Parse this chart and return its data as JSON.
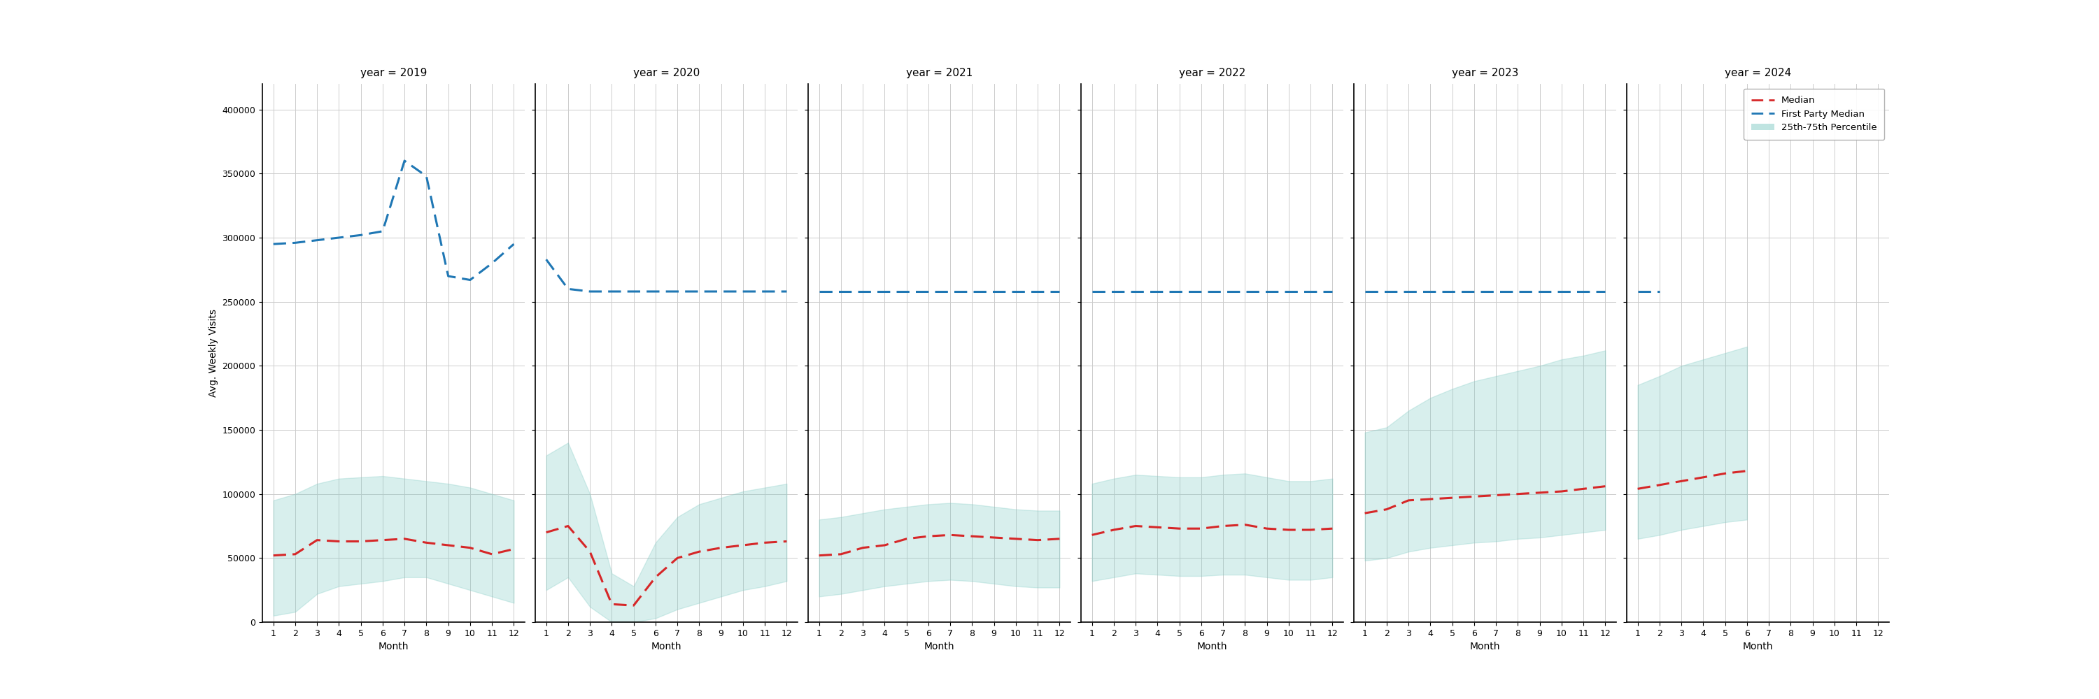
{
  "years": [
    2019,
    2020,
    2021,
    2022,
    2023,
    2024
  ],
  "months": [
    1,
    2,
    3,
    4,
    5,
    6,
    7,
    8,
    9,
    10,
    11,
    12
  ],
  "ylabel": "Avg. Weekly Visits",
  "xlabel": "Month",
  "ylim": [
    0,
    420000
  ],
  "yticks": [
    0,
    50000,
    100000,
    150000,
    200000,
    250000,
    300000,
    350000,
    400000
  ],
  "median": {
    "2019": [
      52000,
      53000,
      64000,
      63000,
      63000,
      64000,
      65000,
      62000,
      60000,
      58000,
      53000,
      57000
    ],
    "2020": [
      70000,
      75000,
      55000,
      14000,
      13000,
      35000,
      50000,
      55000,
      58000,
      60000,
      62000,
      63000
    ],
    "2021": [
      52000,
      53000,
      58000,
      60000,
      65000,
      67000,
      68000,
      67000,
      66000,
      65000,
      64000,
      65000
    ],
    "2022": [
      68000,
      72000,
      75000,
      74000,
      73000,
      73000,
      75000,
      76000,
      73000,
      72000,
      72000,
      73000
    ],
    "2023": [
      85000,
      88000,
      95000,
      96000,
      97000,
      98000,
      99000,
      100000,
      101000,
      102000,
      104000,
      106000
    ],
    "2024": [
      104000,
      107000,
      110000,
      113000,
      116000,
      118000,
      null,
      null,
      null,
      null,
      null,
      null
    ]
  },
  "p25": {
    "2019": [
      5000,
      8000,
      22000,
      28000,
      30000,
      32000,
      35000,
      35000,
      30000,
      25000,
      20000,
      15000
    ],
    "2020": [
      25000,
      35000,
      12000,
      0,
      0,
      3000,
      10000,
      15000,
      20000,
      25000,
      28000,
      32000
    ],
    "2021": [
      20000,
      22000,
      25000,
      28000,
      30000,
      32000,
      33000,
      32000,
      30000,
      28000,
      27000,
      27000
    ],
    "2022": [
      32000,
      35000,
      38000,
      37000,
      36000,
      36000,
      37000,
      37000,
      35000,
      33000,
      33000,
      35000
    ],
    "2023": [
      48000,
      50000,
      55000,
      58000,
      60000,
      62000,
      63000,
      65000,
      66000,
      68000,
      70000,
      72000
    ],
    "2024": [
      65000,
      68000,
      72000,
      75000,
      78000,
      80000,
      null,
      null,
      null,
      null,
      null,
      null
    ]
  },
  "p75": {
    "2019": [
      95000,
      100000,
      108000,
      112000,
      113000,
      114000,
      112000,
      110000,
      108000,
      105000,
      100000,
      95000
    ],
    "2020": [
      130000,
      140000,
      100000,
      38000,
      28000,
      62000,
      82000,
      92000,
      97000,
      102000,
      105000,
      108000
    ],
    "2021": [
      80000,
      82000,
      85000,
      88000,
      90000,
      92000,
      93000,
      92000,
      90000,
      88000,
      87000,
      87000
    ],
    "2022": [
      108000,
      112000,
      115000,
      114000,
      113000,
      113000,
      115000,
      116000,
      113000,
      110000,
      110000,
      112000
    ],
    "2023": [
      148000,
      152000,
      165000,
      175000,
      182000,
      188000,
      192000,
      196000,
      200000,
      205000,
      208000,
      212000
    ],
    "2024": [
      185000,
      192000,
      200000,
      205000,
      210000,
      215000,
      null,
      null,
      null,
      null,
      null,
      null
    ]
  },
  "fp_median": {
    "2019": [
      295000,
      296000,
      298000,
      300000,
      302000,
      305000,
      360000,
      348000,
      270000,
      267000,
      280000,
      295000
    ],
    "2020": [
      283000,
      260000,
      258000,
      258000,
      258000,
      258000,
      258000,
      258000,
      258000,
      258000,
      258000,
      258000
    ],
    "2021": [
      258000,
      258000,
      258000,
      258000,
      258000,
      258000,
      258000,
      258000,
      258000,
      258000,
      258000,
      258000
    ],
    "2022": [
      258000,
      258000,
      258000,
      258000,
      258000,
      258000,
      258000,
      258000,
      258000,
      258000,
      258000,
      258000
    ],
    "2023": [
      258000,
      258000,
      258000,
      258000,
      258000,
      258000,
      258000,
      258000,
      258000,
      258000,
      258000,
      258000
    ],
    "2024": [
      258000,
      258000,
      null,
      null,
      null,
      null,
      null,
      null,
      null,
      null,
      null,
      null
    ]
  },
  "median_color": "#d62728",
  "fp_color": "#1f77b4",
  "fill_color": "#80cbc4",
  "fill_alpha": 0.3,
  "grid_color": "#cccccc",
  "background_color": "#ffffff",
  "legend_labels": [
    "Median",
    "First Party Median",
    "25th-75th Percentile"
  ],
  "title_fontsize": 11,
  "label_fontsize": 10,
  "tick_fontsize": 9
}
